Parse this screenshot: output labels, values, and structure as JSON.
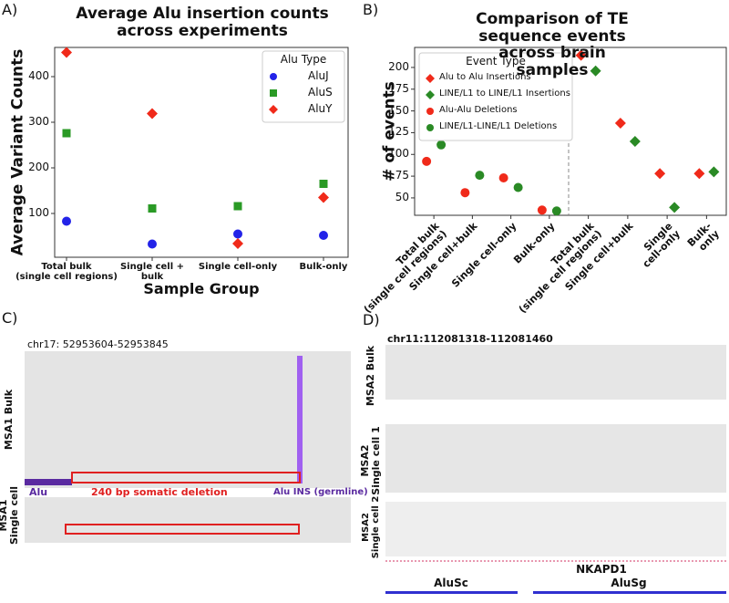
{
  "panel_labels": [
    "A)",
    "B)",
    "C)",
    "D)"
  ],
  "chart_data": [
    {
      "type": "scatter",
      "title": "Average Alu insertion counts\nacross experiments",
      "x_label": "Sample Group",
      "y_label": "Average Variant Counts",
      "categories": [
        "Total bulk\n(single cell regions)",
        "Single cell +\nbulk",
        "Single cell-only",
        "Bulk-only"
      ],
      "series": [
        {
          "name": "AluJ",
          "color": "#2323e8",
          "marker": "circle",
          "values": [
            83,
            33,
            55,
            52
          ]
        },
        {
          "name": "AluS",
          "color": "#2a9a25",
          "marker": "square",
          "values": [
            276,
            111,
            116,
            165
          ]
        },
        {
          "name": "AluY",
          "color": "#f02a1a",
          "marker": "diamond",
          "values": [
            453,
            319,
            34,
            135
          ]
        }
      ],
      "ylim": [
        4,
        464
      ],
      "yticks": [
        100,
        200,
        300,
        400
      ],
      "grid": false,
      "legend_title": "Alu Type",
      "legend": "upper right"
    },
    {
      "type": "scatter",
      "title": "Comparison of TE sequence events\nacross brain samples",
      "y_label": "# of events",
      "categories": [
        "Total bulk\n(single cell regions)",
        "Single cell+bulk",
        "Single cell-only",
        "Bulk-only",
        "Total bulk\n(single cell regions)",
        "Single cell+bulk",
        "Single cell-only",
        "Bulk-only"
      ],
      "series": [
        {
          "name": "Alu to Alu Insertions",
          "color": "#f02a1a",
          "marker": "diamond",
          "values": [
            null,
            null,
            null,
            null,
            214,
            136,
            78,
            78
          ]
        },
        {
          "name": "LINE/L1 to LINE/L1 Insertions",
          "color": "#2a8a25",
          "marker": "diamond",
          "values": [
            null,
            null,
            null,
            null,
            196,
            115,
            39,
            80
          ]
        },
        {
          "name": "Alu-Alu Deletions",
          "color": "#f02a1a",
          "marker": "circle",
          "values": [
            92,
            56,
            73,
            36,
            null,
            null,
            null,
            null
          ]
        },
        {
          "name": "LINE/L1-LINE/L1 Deletions",
          "color": "#2a8a25",
          "marker": "circle",
          "values": [
            111,
            76,
            62,
            35,
            null,
            null,
            null,
            null
          ]
        }
      ],
      "ylim": [
        30,
        223
      ],
      "yticks": [
        50,
        75,
        100,
        125,
        150,
        175,
        200
      ],
      "grid": false,
      "legend_title": "Event Type",
      "legend": "upper left"
    }
  ],
  "panel_c": {
    "locus": "chr17: 52953604-52953845",
    "tracks": [
      "MSA1 Bulk",
      "MSA1\nSingle cell"
    ],
    "annotations": [
      "Alu",
      "240 bp somatic deletion",
      "Alu INS (germline)"
    ]
  },
  "panel_d": {
    "locus": "chr11:112081318-112081460",
    "tracks": [
      "MSA2 Bulk",
      "MSA2\nSingle cell 1",
      "MSA2\nSingle cell 2"
    ],
    "gene": "NKAPD1",
    "elements": [
      "AluSc",
      "AluSg"
    ]
  }
}
